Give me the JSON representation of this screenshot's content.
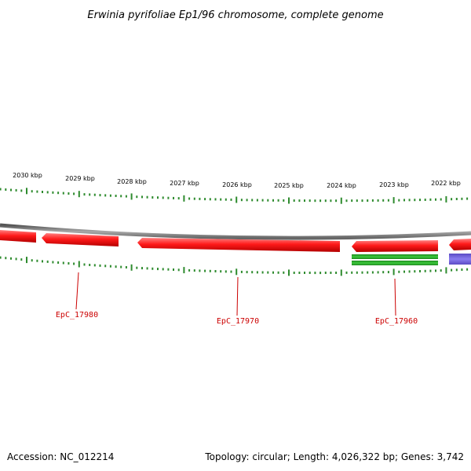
{
  "title": "Erwinia pyrifoliae Ep1/96 chromosome, complete genome",
  "footer": {
    "accession": "Accession: NC_012214",
    "summary": "Topology: circular; Length: 4,026,322 bp; Genes: 3,742"
  },
  "colors": {
    "backbone": "#7a7a7a",
    "ticks": "#2e8b2e",
    "forward_gene": "#ff1a1a",
    "reverse_gene_green": "#2fa82f",
    "reverse_gene_blue": "#7766dd",
    "label": "#cc0000"
  },
  "ruler": {
    "unit": "kbp",
    "labels": [
      "2030 kbp",
      "2029 kbp",
      "2028 kbp",
      "2027 kbp",
      "2026 kbp",
      "2025 kbp",
      "2024 kbp",
      "2023 kbp",
      "2022 kbp"
    ]
  },
  "gene_labels": [
    "EpC_17980",
    "EpC_17970",
    "EpC_17960"
  ]
}
